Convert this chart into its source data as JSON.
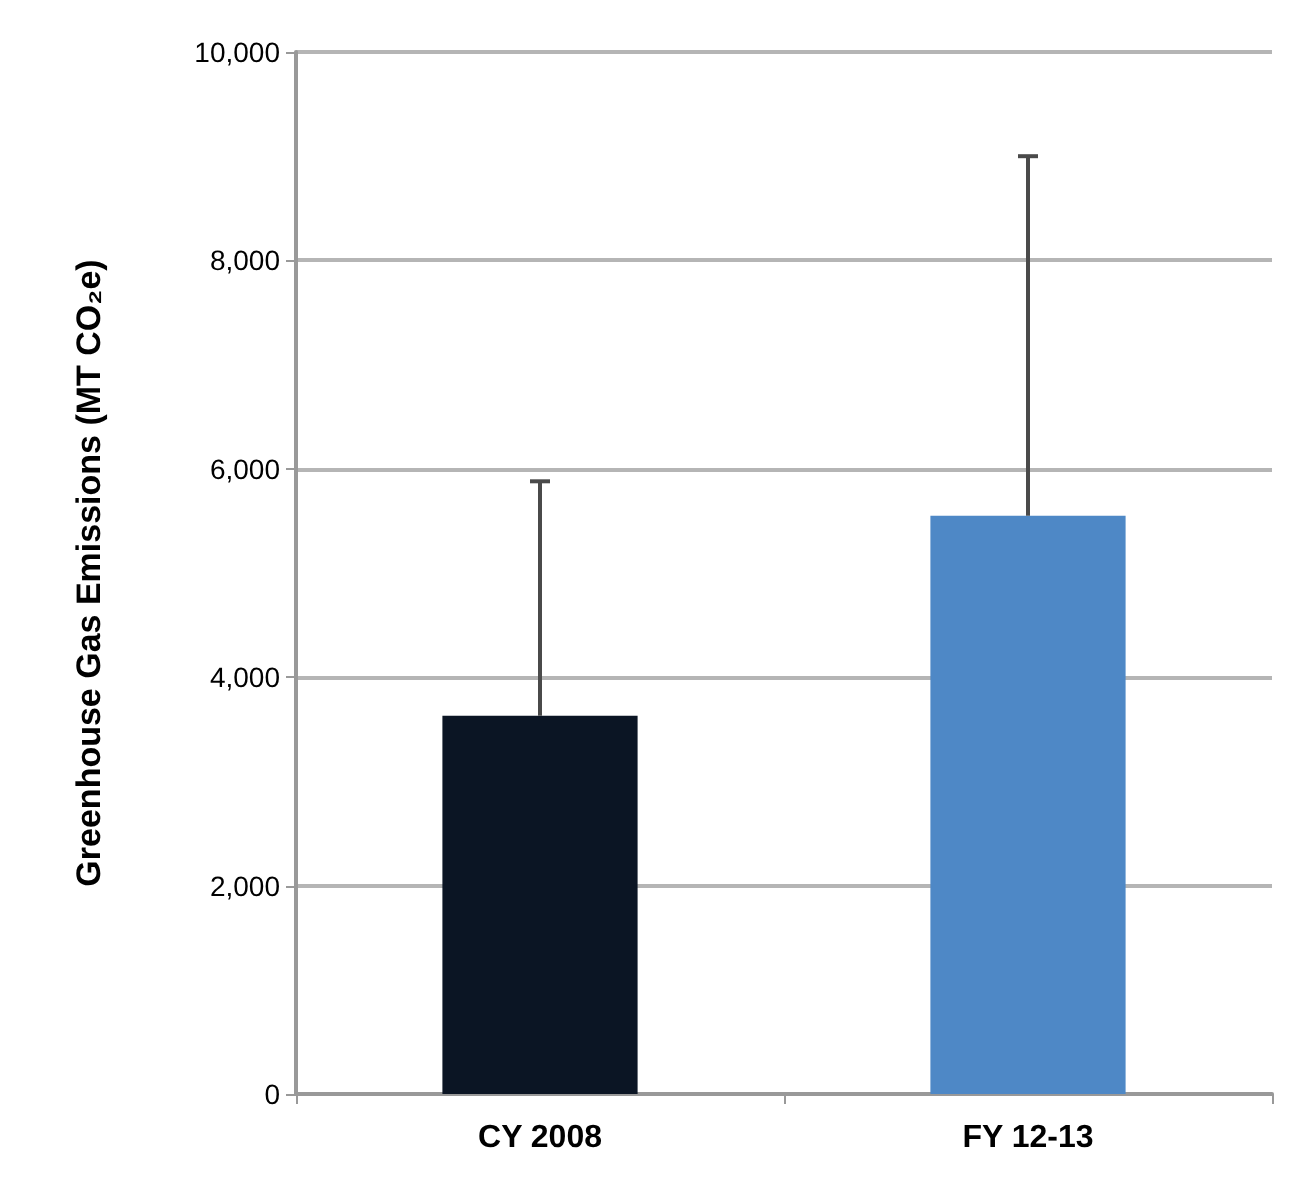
{
  "chart_data": {
    "type": "bar",
    "ylabel": "Greenhouse Gas Emissions (MT CO₂e)",
    "categories": [
      "CY 2008",
      "FY 12-13"
    ],
    "values": [
      3630,
      5550
    ],
    "colors": [
      "#0b1524",
      "#4e88c6"
    ],
    "errors": [
      [
        3630,
        5880
      ],
      [
        5550,
        9000
      ]
    ],
    "ylim": [
      0,
      10000
    ],
    "yticks": [
      {
        "value": 0,
        "label": "0"
      },
      {
        "value": 2000,
        "label": "2,000"
      },
      {
        "value": 4000,
        "label": "4,000"
      },
      {
        "value": 6000,
        "label": "6,000"
      },
      {
        "value": 8000,
        "label": "8,000"
      },
      {
        "value": 10000,
        "label": "10,000"
      }
    ],
    "grid": "y"
  }
}
